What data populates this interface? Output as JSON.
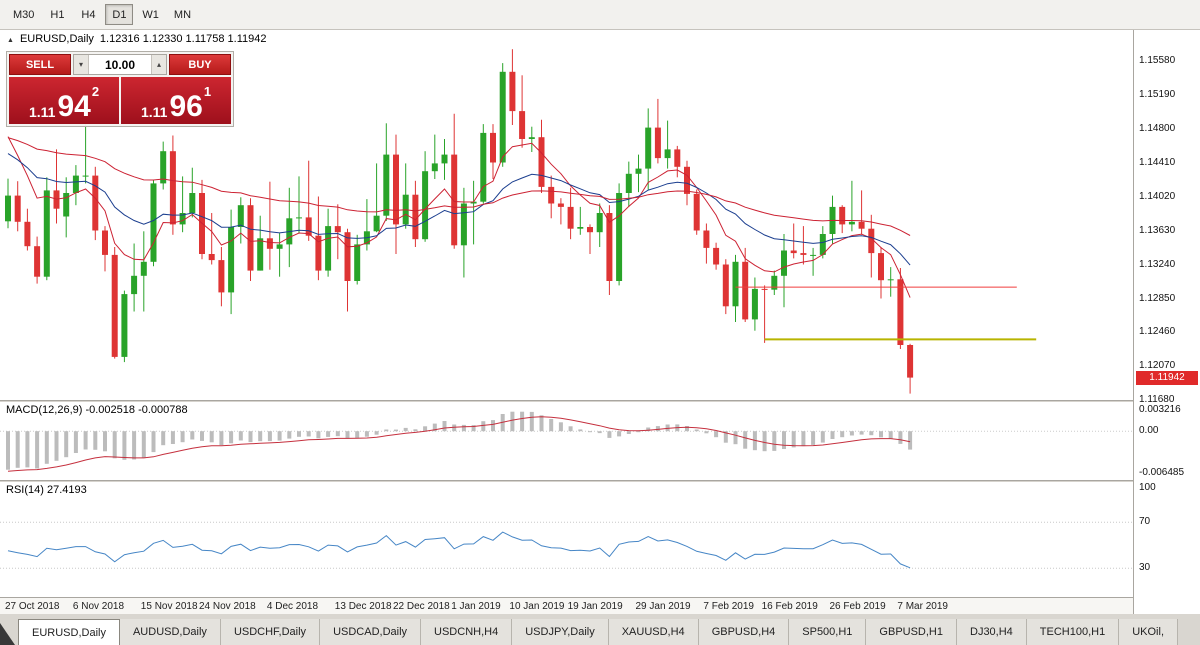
{
  "toolbar": {
    "timeframes": [
      {
        "label": "M30",
        "active": false
      },
      {
        "label": "H1",
        "active": false
      },
      {
        "label": "H4",
        "active": false
      },
      {
        "label": "D1",
        "active": true
      },
      {
        "label": "W1",
        "active": false
      },
      {
        "label": "MN",
        "active": false
      }
    ]
  },
  "chart": {
    "title_icon": "▲",
    "symbol_title": "EURUSD,Daily",
    "ohlc": "1.12316 1.12330 1.11758 1.11942",
    "trade_panel": {
      "sell_label": "SELL",
      "buy_label": "BUY",
      "volume": "10.00",
      "volume_down_icon": "▾",
      "volume_up_icon": "▴",
      "sell_price_main": "1.11",
      "sell_price_pips": "94",
      "sell_price_frac": "2",
      "buy_price_main": "1.11",
      "buy_price_pips": "96",
      "buy_price_frac": "1"
    },
    "price_axis": [
      "1.15580",
      "1.15190",
      "1.14800",
      "1.14410",
      "1.14020",
      "1.13630",
      "1.13240",
      "1.12850",
      "1.12460",
      "1.12070",
      "1.11680"
    ],
    "current_price": "1.11942"
  },
  "macd": {
    "label": "MACD(12,26,9) -0.002518 -0.000788",
    "axis": [
      "0.003216",
      "0.00",
      "-0.006485"
    ]
  },
  "rsi": {
    "label": "RSI(14) 27.4193",
    "axis": [
      "100",
      "70",
      "30"
    ]
  },
  "tabs": [
    {
      "label": "EURUSD,Daily",
      "active": true
    },
    {
      "label": "AUDUSD,Daily",
      "active": false
    },
    {
      "label": "USDCHF,Daily",
      "active": false
    },
    {
      "label": "USDCAD,Daily",
      "active": false
    },
    {
      "label": "USDCNH,H4",
      "active": false
    },
    {
      "label": "USDJPY,Daily",
      "active": false
    },
    {
      "label": "XAUUSD,H4",
      "active": false
    },
    {
      "label": "GBPUSD,H4",
      "active": false
    },
    {
      "label": "SP500,H1",
      "active": false
    },
    {
      "label": "GBPUSD,H1",
      "active": false
    },
    {
      "label": "DJ30,H4",
      "active": false
    },
    {
      "label": "TECH100,H1",
      "active": false
    },
    {
      "label": "UKOil,",
      "active": false
    }
  ],
  "chart_data": {
    "type": "candlestick",
    "symbol": "EURUSD",
    "timeframe": "Daily",
    "ylim": [
      1.11685,
      1.1593
    ],
    "colors": {
      "up": "#29a329",
      "down": "#de3434"
    },
    "candles": [
      [
        1.13735,
        1.14225,
        1.13655,
        1.1403
      ],
      [
        1.1403,
        1.14195,
        1.1362,
        1.1373
      ],
      [
        1.1373,
        1.1388,
        1.134,
        1.1345
      ],
      [
        1.1345,
        1.1356,
        1.1302,
        1.131
      ],
      [
        1.131,
        1.1424,
        1.1306,
        1.1409
      ],
      [
        1.1409,
        1.1456,
        1.1371,
        1.1388
      ],
      [
        1.1379,
        1.1424,
        1.1355,
        1.1406
      ],
      [
        1.1406,
        1.1438,
        1.1392,
        1.1426
      ],
      [
        1.1426,
        1.1499,
        1.1417,
        1.1426
      ],
      [
        1.1426,
        1.1436,
        1.1352,
        1.1363
      ],
      [
        1.1363,
        1.1368,
        1.1316,
        1.1335
      ],
      [
        1.1335,
        1.1344,
        1.1216,
        1.1218
      ],
      [
        1.1218,
        1.1294,
        1.1212,
        1.129
      ],
      [
        1.129,
        1.1348,
        1.127,
        1.1311
      ],
      [
        1.1311,
        1.1362,
        1.127,
        1.1327
      ],
      [
        1.1327,
        1.1421,
        1.1322,
        1.1417
      ],
      [
        1.1417,
        1.1465,
        1.141,
        1.1454
      ],
      [
        1.1454,
        1.1472,
        1.1358,
        1.137
      ],
      [
        1.137,
        1.1425,
        1.1361,
        1.1383
      ],
      [
        1.1383,
        1.1435,
        1.1378,
        1.1406
      ],
      [
        1.1406,
        1.1421,
        1.133,
        1.1336
      ],
      [
        1.1336,
        1.1383,
        1.1324,
        1.1329
      ],
      [
        1.1329,
        1.1344,
        1.1276,
        1.1292
      ],
      [
        1.1292,
        1.1387,
        1.1267,
        1.1367
      ],
      [
        1.1367,
        1.1401,
        1.1348,
        1.1392
      ],
      [
        1.1392,
        1.14,
        1.1305,
        1.1317
      ],
      [
        1.1317,
        1.138,
        1.1317,
        1.1354
      ],
      [
        1.1354,
        1.1419,
        1.1318,
        1.1342
      ],
      [
        1.1342,
        1.136,
        1.131,
        1.1347
      ],
      [
        1.1347,
        1.1412,
        1.1321,
        1.1377
      ],
      [
        1.1377,
        1.1425,
        1.136,
        1.1378
      ],
      [
        1.1378,
        1.1443,
        1.1351,
        1.1357
      ],
      [
        1.1357,
        1.1402,
        1.1306,
        1.1317
      ],
      [
        1.1317,
        1.1388,
        1.131,
        1.1368
      ],
      [
        1.1368,
        1.1393,
        1.133,
        1.1361
      ],
      [
        1.1361,
        1.1365,
        1.127,
        1.1305
      ],
      [
        1.1305,
        1.1358,
        1.1301,
        1.1347
      ],
      [
        1.1347,
        1.1399,
        1.134,
        1.1362
      ],
      [
        1.1362,
        1.144,
        1.1361,
        1.138
      ],
      [
        1.138,
        1.1486,
        1.1374,
        1.145
      ],
      [
        1.145,
        1.1473,
        1.1336,
        1.137
      ],
      [
        1.137,
        1.144,
        1.1365,
        1.1404
      ],
      [
        1.1404,
        1.142,
        1.1344,
        1.1353
      ],
      [
        1.1353,
        1.1454,
        1.135,
        1.1431
      ],
      [
        1.1431,
        1.1473,
        1.1422,
        1.144
      ],
      [
        1.144,
        1.1468,
        1.1421,
        1.145
      ],
      [
        1.145,
        1.1497,
        1.1342,
        1.1346
      ],
      [
        1.1346,
        1.1412,
        1.1309,
        1.1394
      ],
      [
        1.1394,
        1.142,
        1.1347,
        1.1396
      ],
      [
        1.1396,
        1.1485,
        1.1394,
        1.1475
      ],
      [
        1.1475,
        1.1485,
        1.1422,
        1.1441
      ],
      [
        1.1441,
        1.1555,
        1.1436,
        1.1545
      ],
      [
        1.1545,
        1.1571,
        1.1484,
        1.15
      ],
      [
        1.15,
        1.1541,
        1.1458,
        1.1468
      ],
      [
        1.1468,
        1.1482,
        1.1453,
        1.147
      ],
      [
        1.147,
        1.149,
        1.1406,
        1.1413
      ],
      [
        1.1413,
        1.1426,
        1.1377,
        1.1394
      ],
      [
        1.1394,
        1.14,
        1.137,
        1.139
      ],
      [
        1.139,
        1.1412,
        1.1353,
        1.1365
      ],
      [
        1.1365,
        1.139,
        1.1358,
        1.1367
      ],
      [
        1.1367,
        1.137,
        1.1336,
        1.1361
      ],
      [
        1.1361,
        1.1394,
        1.1344,
        1.1383
      ],
      [
        1.1383,
        1.1392,
        1.1289,
        1.1305
      ],
      [
        1.1305,
        1.1417,
        1.13,
        1.1406
      ],
      [
        1.1406,
        1.1442,
        1.139,
        1.1428
      ],
      [
        1.1428,
        1.145,
        1.1407,
        1.1434
      ],
      [
        1.1434,
        1.1503,
        1.141,
        1.1481
      ],
      [
        1.1481,
        1.1514,
        1.144,
        1.1446
      ],
      [
        1.1446,
        1.1489,
        1.1434,
        1.1456
      ],
      [
        1.1456,
        1.146,
        1.1424,
        1.1436
      ],
      [
        1.1436,
        1.1443,
        1.1392,
        1.1405
      ],
      [
        1.1405,
        1.141,
        1.1358,
        1.1363
      ],
      [
        1.1363,
        1.1371,
        1.1325,
        1.1343
      ],
      [
        1.1343,
        1.1349,
        1.1318,
        1.1324
      ],
      [
        1.1324,
        1.133,
        1.1267,
        1.1276
      ],
      [
        1.1276,
        1.1335,
        1.1258,
        1.1327
      ],
      [
        1.1327,
        1.1343,
        1.1258,
        1.1261
      ],
      [
        1.1261,
        1.1309,
        1.1248,
        1.1296
      ],
      [
        1.1296,
        1.13,
        1.1234,
        1.1295
      ],
      [
        1.1295,
        1.1317,
        1.1289,
        1.1311
      ],
      [
        1.1311,
        1.1359,
        1.1275,
        1.134
      ],
      [
        1.134,
        1.1371,
        1.1331,
        1.1337
      ],
      [
        1.1337,
        1.1368,
        1.1324,
        1.1335
      ],
      [
        1.1335,
        1.1343,
        1.1311,
        1.1335
      ],
      [
        1.1335,
        1.1368,
        1.1331,
        1.1359
      ],
      [
        1.1359,
        1.1403,
        1.1348,
        1.139
      ],
      [
        1.139,
        1.1392,
        1.136,
        1.137
      ],
      [
        1.137,
        1.142,
        1.1362,
        1.1373
      ],
      [
        1.1373,
        1.1409,
        1.1358,
        1.1365
      ],
      [
        1.1365,
        1.1381,
        1.1309,
        1.1337
      ],
      [
        1.1337,
        1.1344,
        1.1285,
        1.1306
      ],
      [
        1.1306,
        1.1321,
        1.1287,
        1.1307
      ],
      [
        1.1307,
        1.132,
        1.1227,
        1.12316
      ],
      [
        1.12316,
        1.1233,
        1.11758,
        1.11942
      ]
    ],
    "x_axis_labels": [
      {
        "label": "27 Oct 2018",
        "bar": 0
      },
      {
        "label": "6 Nov 2018",
        "bar": 7
      },
      {
        "label": "15 Nov 2018",
        "bar": 14
      },
      {
        "label": "24 Nov 2018",
        "bar": 20
      },
      {
        "label": "4 Dec 2018",
        "bar": 27
      },
      {
        "label": "13 Dec 2018",
        "bar": 34
      },
      {
        "label": "22 Dec 2018",
        "bar": 40
      },
      {
        "label": "1 Jan 2019",
        "bar": 46
      },
      {
        "label": "10 Jan 2019",
        "bar": 52
      },
      {
        "label": "19 Jan 2019",
        "bar": 58
      },
      {
        "label": "29 Jan 2019",
        "bar": 65
      },
      {
        "label": "7 Feb 2019",
        "bar": 72
      },
      {
        "label": "16 Feb 2019",
        "bar": 78
      },
      {
        "label": "26 Feb 2019",
        "bar": 85
      },
      {
        "label": "7 Mar 2019",
        "bar": 92
      }
    ],
    "hlines": [
      {
        "price": 1.1298,
        "from_bar": 75,
        "to_bar": 104,
        "color": "#f03c3c",
        "width": 1
      },
      {
        "price": 1.1238,
        "from_bar": 78,
        "to_bar": 106,
        "color": "#b8b400",
        "width": 2
      }
    ],
    "moving_averages": [
      {
        "period": 8,
        "method": "ema",
        "seed": 1.149,
        "color": "#cc2233",
        "width": 1
      },
      {
        "period": 21,
        "method": "ema",
        "seed": 1.1456,
        "color": "#1b3e8f",
        "width": 1
      },
      {
        "period": 55,
        "method": "ema",
        "seed": 1.1472,
        "color": "#cc2233",
        "width": 1
      }
    ],
    "macd": {
      "fast": 12,
      "slow": 26,
      "signal": 9,
      "seed_fast": 1.139,
      "seed_slow": 1.1455,
      "seed_signal": -0.0062,
      "ylim": [
        -0.0075,
        0.0045
      ],
      "hist_color": "#bcbcbc",
      "signal_color": "#c5303e"
    },
    "rsi": {
      "period": 14,
      "seed_gain": 0.0028,
      "seed_loss": 0.0034,
      "levels": [
        70,
        30
      ],
      "ylim": [
        5,
        105
      ],
      "color": "#4686c6"
    }
  }
}
